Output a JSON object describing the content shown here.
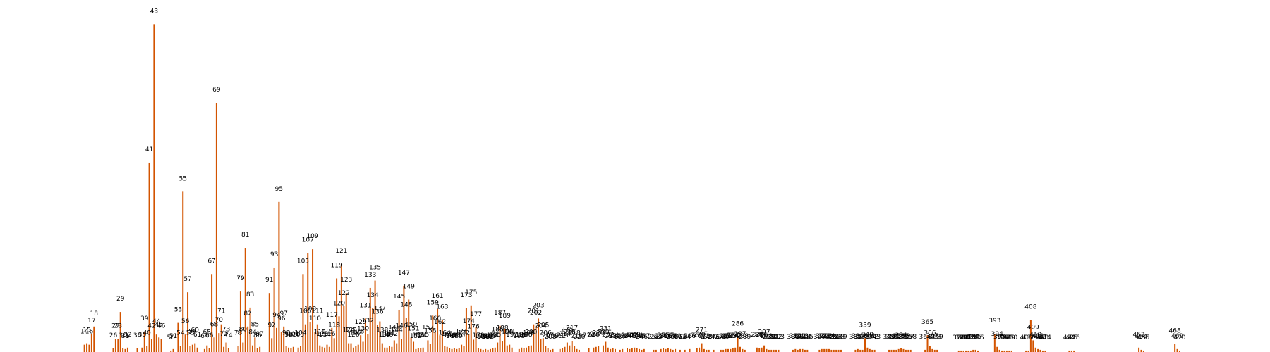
{
  "chart_data": {
    "type": "bar",
    "title": "",
    "xlabel": "",
    "ylabel": "",
    "grid": false,
    "legend": "none",
    "bar_color": "#d35400",
    "ylim": [
      0,
      46
    ],
    "x_range": [
      0,
      480
    ],
    "values": [
      [
        14,
        1
      ],
      [
        15,
        1.2
      ],
      [
        16,
        1
      ],
      [
        17,
        2.5
      ],
      [
        18,
        3.5
      ],
      [
        26,
        0.5
      ],
      [
        27,
        1.8
      ],
      [
        28,
        1.8
      ],
      [
        29,
        5.5
      ],
      [
        30,
        0.5
      ],
      [
        31,
        0.4
      ],
      [
        32,
        0.6
      ],
      [
        36,
        0.5
      ],
      [
        38,
        0.6
      ],
      [
        39,
        2.8
      ],
      [
        40,
        0.8
      ],
      [
        41,
        26
      ],
      [
        42,
        1.8
      ],
      [
        43,
        45
      ],
      [
        44,
        2.4
      ],
      [
        45,
        2
      ],
      [
        46,
        1.8
      ],
      [
        50,
        0.2
      ],
      [
        51,
        0.4
      ],
      [
        53,
        4
      ],
      [
        54,
        0.8
      ],
      [
        55,
        22
      ],
      [
        56,
        2.4
      ],
      [
        57,
        8.2
      ],
      [
        58,
        0.8
      ],
      [
        59,
        1
      ],
      [
        60,
        1.2
      ],
      [
        61,
        0.6
      ],
      [
        64,
        0.4
      ],
      [
        65,
        0.9
      ],
      [
        66,
        0.5
      ],
      [
        67,
        10.7
      ],
      [
        68,
        2
      ],
      [
        69,
        34.2
      ],
      [
        70,
        2.6
      ],
      [
        71,
        3.8
      ],
      [
        72,
        0.7
      ],
      [
        73,
        1.3
      ],
      [
        74,
        0.5
      ],
      [
        78,
        0.8
      ],
      [
        79,
        8.3
      ],
      [
        80,
        1.3
      ],
      [
        81,
        14.3
      ],
      [
        82,
        3.5
      ],
      [
        83,
        6.1
      ],
      [
        84,
        0.9
      ],
      [
        85,
        2
      ],
      [
        86,
        0.5
      ],
      [
        87,
        0.7
      ],
      [
        91,
        8.1
      ],
      [
        92,
        1.9
      ],
      [
        93,
        11.6
      ],
      [
        94,
        3.3
      ],
      [
        95,
        20.6
      ],
      [
        96,
        2.8
      ],
      [
        97,
        3.5
      ],
      [
        98,
        0.8
      ],
      [
        99,
        0.6
      ],
      [
        100,
        0.5
      ],
      [
        101,
        0.7
      ],
      [
        103,
        0.6
      ],
      [
        104,
        0.8
      ],
      [
        105,
        10.7
      ],
      [
        106,
        3.8
      ],
      [
        107,
        13.6
      ],
      [
        108,
        4.1
      ],
      [
        109,
        14.1
      ],
      [
        110,
        2.8
      ],
      [
        111,
        3.8
      ],
      [
        112,
        0.9
      ],
      [
        113,
        0.7
      ],
      [
        114,
        0.6
      ],
      [
        115,
        1
      ],
      [
        116,
        0.7
      ],
      [
        117,
        3.3
      ],
      [
        118,
        1.9
      ],
      [
        119,
        10.1
      ],
      [
        120,
        4.9
      ],
      [
        121,
        12.1
      ],
      [
        122,
        6.3
      ],
      [
        123,
        8.1
      ],
      [
        124,
        1.2
      ],
      [
        125,
        1.2
      ],
      [
        126,
        0.6
      ],
      [
        127,
        0.8
      ],
      [
        128,
        1
      ],
      [
        129,
        2.3
      ],
      [
        130,
        1.4
      ],
      [
        131,
        4.6
      ],
      [
        132,
        2.5
      ],
      [
        133,
        8.8
      ],
      [
        134,
        6
      ],
      [
        135,
        9.8
      ],
      [
        136,
        3.7
      ],
      [
        137,
        4.2
      ],
      [
        138,
        1.2
      ],
      [
        139,
        0.6
      ],
      [
        140,
        0.6
      ],
      [
        141,
        0.8
      ],
      [
        142,
        0.7
      ],
      [
        143,
        1.6
      ],
      [
        144,
        1.2
      ],
      [
        145,
        5.8
      ],
      [
        146,
        1.8
      ],
      [
        147,
        9.1
      ],
      [
        148,
        4.7
      ],
      [
        149,
        7.2
      ],
      [
        150,
        2
      ],
      [
        151,
        1.4
      ],
      [
        152,
        0.4
      ],
      [
        153,
        0.5
      ],
      [
        154,
        0.5
      ],
      [
        155,
        0.6
      ],
      [
        157,
        1.6
      ],
      [
        158,
        1.1
      ],
      [
        159,
        5
      ],
      [
        160,
        2.8
      ],
      [
        161,
        5.9
      ],
      [
        162,
        2.3
      ],
      [
        163,
        4.4
      ],
      [
        164,
        0.8
      ],
      [
        165,
        0.7
      ],
      [
        166,
        0.5
      ],
      [
        167,
        0.4
      ],
      [
        168,
        0.5
      ],
      [
        169,
        0.4
      ],
      [
        170,
        0.5
      ],
      [
        171,
        1
      ],
      [
        172,
        0.8
      ],
      [
        173,
        6
      ],
      [
        174,
        2.4
      ],
      [
        175,
        6.4
      ],
      [
        176,
        1.7
      ],
      [
        177,
        3.4
      ],
      [
        178,
        0.5
      ],
      [
        179,
        0.4
      ],
      [
        180,
        0.3
      ],
      [
        181,
        0.4
      ],
      [
        182,
        0.3
      ],
      [
        183,
        0.4
      ],
      [
        184,
        0.5
      ],
      [
        185,
        0.6
      ],
      [
        186,
        1.3
      ],
      [
        187,
        3.6
      ],
      [
        188,
        1.5
      ],
      [
        189,
        3.2
      ],
      [
        190,
        0.9
      ],
      [
        191,
        1
      ],
      [
        192,
        0.6
      ],
      [
        195,
        0.4
      ],
      [
        196,
        0.6
      ],
      [
        197,
        0.5
      ],
      [
        198,
        0.6
      ],
      [
        199,
        0.8
      ],
      [
        200,
        0.9
      ],
      [
        201,
        3.8
      ],
      [
        202,
        3.6
      ],
      [
        203,
        4.6
      ],
      [
        204,
        1.8
      ],
      [
        205,
        1.9
      ],
      [
        206,
        0.8
      ],
      [
        207,
        0.5
      ],
      [
        208,
        0.3
      ],
      [
        209,
        0.4
      ],
      [
        212,
        0.4
      ],
      [
        213,
        0.5
      ],
      [
        214,
        0.7
      ],
      [
        215,
        1.3
      ],
      [
        216,
        0.9
      ],
      [
        217,
        1.5
      ],
      [
        218,
        0.8
      ],
      [
        219,
        0.4
      ],
      [
        220,
        0.3
      ],
      [
        224,
        0.5
      ],
      [
        226,
        0.6
      ],
      [
        227,
        0.7
      ],
      [
        228,
        0.8
      ],
      [
        230,
        0.9
      ],
      [
        231,
        1.4
      ],
      [
        232,
        0.6
      ],
      [
        233,
        0.4
      ],
      [
        234,
        0.5
      ],
      [
        235,
        0.4
      ],
      [
        237,
        0.3
      ],
      [
        238,
        0.4
      ],
      [
        240,
        0.5
      ],
      [
        241,
        0.4
      ],
      [
        242,
        0.5
      ],
      [
        243,
        0.6
      ],
      [
        244,
        0.5
      ],
      [
        245,
        0.4
      ],
      [
        246,
        0.3
      ],
      [
        247,
        0.4
      ],
      [
        251,
        0.3
      ],
      [
        252,
        0.3
      ],
      [
        254,
        0.4
      ],
      [
        255,
        0.5
      ],
      [
        256,
        0.4
      ],
      [
        257,
        0.5
      ],
      [
        258,
        0.4
      ],
      [
        259,
        0.3
      ],
      [
        260,
        0.4
      ],
      [
        262,
        0.3
      ],
      [
        264,
        0.3
      ],
      [
        266,
        0.4
      ],
      [
        269,
        0.5
      ],
      [
        270,
        0.6
      ],
      [
        271,
        1.2
      ],
      [
        272,
        0.4
      ],
      [
        273,
        0.3
      ],
      [
        274,
        0.3
      ],
      [
        276,
        0.3
      ],
      [
        279,
        0.3
      ],
      [
        280,
        0.3
      ],
      [
        281,
        0.4
      ],
      [
        282,
        0.4
      ],
      [
        283,
        0.4
      ],
      [
        284,
        0.5
      ],
      [
        285,
        0.6
      ],
      [
        286,
        2.1
      ],
      [
        287,
        0.7
      ],
      [
        288,
        0.4
      ],
      [
        289,
        0.3
      ],
      [
        294,
        0.6
      ],
      [
        295,
        0.5
      ],
      [
        296,
        0.6
      ],
      [
        297,
        0.9
      ],
      [
        298,
        0.4
      ],
      [
        299,
        0.3
      ],
      [
        300,
        0.3
      ],
      [
        301,
        0.3
      ],
      [
        302,
        0.3
      ],
      [
        303,
        0.3
      ],
      [
        309,
        0.3
      ],
      [
        310,
        0.4
      ],
      [
        311,
        0.3
      ],
      [
        312,
        0.4
      ],
      [
        313,
        0.4
      ],
      [
        314,
        0.3
      ],
      [
        315,
        0.3
      ],
      [
        320,
        0.3
      ],
      [
        321,
        0.4
      ],
      [
        322,
        0.4
      ],
      [
        323,
        0.4
      ],
      [
        324,
        0.4
      ],
      [
        325,
        0.3
      ],
      [
        326,
        0.3
      ],
      [
        327,
        0.3
      ],
      [
        328,
        0.3
      ],
      [
        329,
        0.3
      ],
      [
        335,
        0.3
      ],
      [
        336,
        0.4
      ],
      [
        337,
        0.3
      ],
      [
        338,
        0.3
      ],
      [
        339,
        1.9
      ],
      [
        340,
        0.6
      ],
      [
        341,
        0.4
      ],
      [
        342,
        0.3
      ],
      [
        343,
        0.3
      ],
      [
        349,
        0.3
      ],
      [
        350,
        0.3
      ],
      [
        351,
        0.3
      ],
      [
        352,
        0.3
      ],
      [
        353,
        0.4
      ],
      [
        354,
        0.5
      ],
      [
        355,
        0.4
      ],
      [
        356,
        0.3
      ],
      [
        357,
        0.3
      ],
      [
        358,
        0.3
      ],
      [
        364,
        0.3
      ],
      [
        365,
        2.3
      ],
      [
        366,
        0.8
      ],
      [
        367,
        0.4
      ],
      [
        368,
        0.3
      ],
      [
        369,
        0.3
      ],
      [
        378,
        0.2
      ],
      [
        379,
        0.2
      ],
      [
        380,
        0.2
      ],
      [
        381,
        0.2
      ],
      [
        382,
        0.2
      ],
      [
        383,
        0.2
      ],
      [
        384,
        0.3
      ],
      [
        385,
        0.3
      ],
      [
        386,
        0.2
      ],
      [
        393,
        2.5
      ],
      [
        394,
        0.7
      ],
      [
        395,
        0.3
      ],
      [
        396,
        0.2
      ],
      [
        397,
        0.2
      ],
      [
        398,
        0.2
      ],
      [
        399,
        0.2
      ],
      [
        400,
        0.2
      ],
      [
        406,
        0.2
      ],
      [
        407,
        0.2
      ],
      [
        408,
        4.4
      ],
      [
        409,
        1.6
      ],
      [
        410,
        0.6
      ],
      [
        411,
        0.4
      ],
      [
        412,
        0.3
      ],
      [
        413,
        0.2
      ],
      [
        414,
        0.2
      ],
      [
        424,
        0.2
      ],
      [
        425,
        0.2
      ],
      [
        426,
        0.2
      ],
      [
        453,
        0.6
      ],
      [
        454,
        0.3
      ],
      [
        455,
        0.2
      ],
      [
        468,
        1.1
      ],
      [
        469,
        0.4
      ],
      [
        470,
        0.2
      ]
    ]
  }
}
